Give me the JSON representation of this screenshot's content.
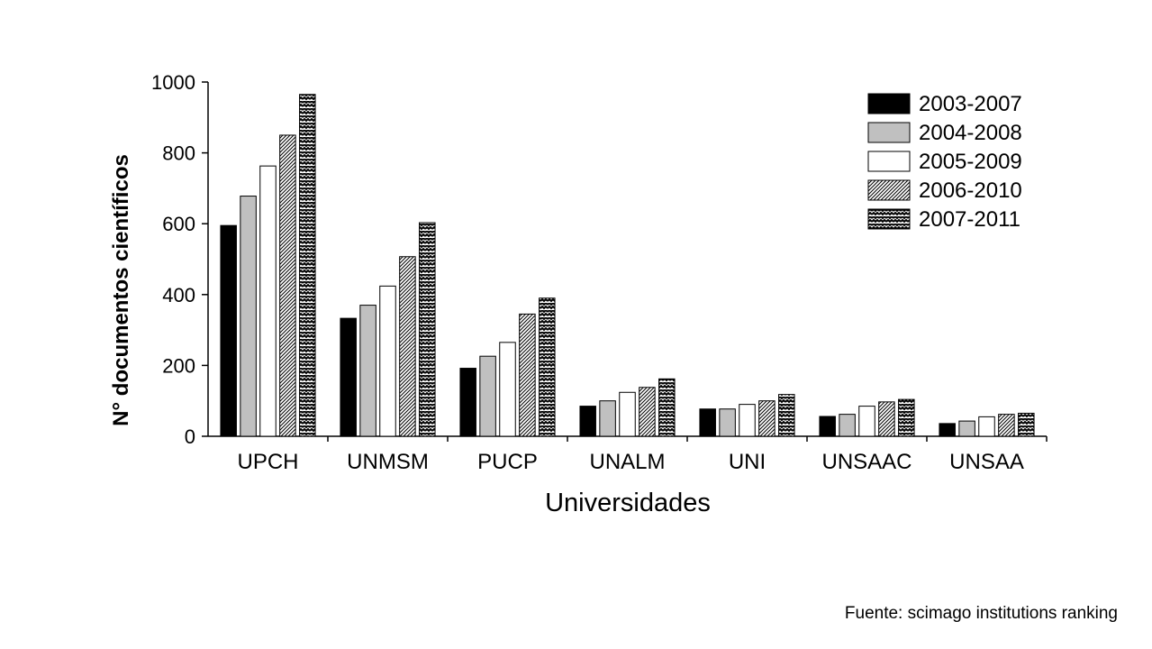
{
  "chart_data": {
    "type": "bar",
    "title": "",
    "xlabel": "Universidades",
    "ylabel": "N° documentos científicos",
    "ylim": [
      0,
      1000
    ],
    "yticks": [
      0,
      200,
      400,
      600,
      800,
      1000
    ],
    "grid": false,
    "legend_position": "top-right",
    "categories": [
      "UPCH",
      "UNMSM",
      "PUCP",
      "UNALM",
      "UNI",
      "UNSAAC",
      "UNSAA"
    ],
    "series": [
      {
        "name": "2003-2007",
        "pattern": "solid-black",
        "values": [
          595,
          333,
          192,
          85,
          77,
          56,
          36
        ]
      },
      {
        "name": "2004-2008",
        "pattern": "solid-gray",
        "values": [
          678,
          370,
          226,
          100,
          77,
          62,
          43
        ]
      },
      {
        "name": "2005-2009",
        "pattern": "white",
        "values": [
          763,
          424,
          265,
          124,
          90,
          85,
          55
        ]
      },
      {
        "name": "2006-2010",
        "pattern": "diagonal-hatch",
        "values": [
          850,
          507,
          345,
          138,
          100,
          97,
          62
        ]
      },
      {
        "name": "2007-2011",
        "pattern": "zigzag",
        "values": [
          965,
          603,
          390,
          162,
          118,
          104,
          65
        ]
      }
    ]
  },
  "source_note": "Fuente: scimago institutions ranking",
  "colors": {
    "black": "#000000",
    "gray": "#c0c0c0",
    "white": "#ffffff"
  }
}
